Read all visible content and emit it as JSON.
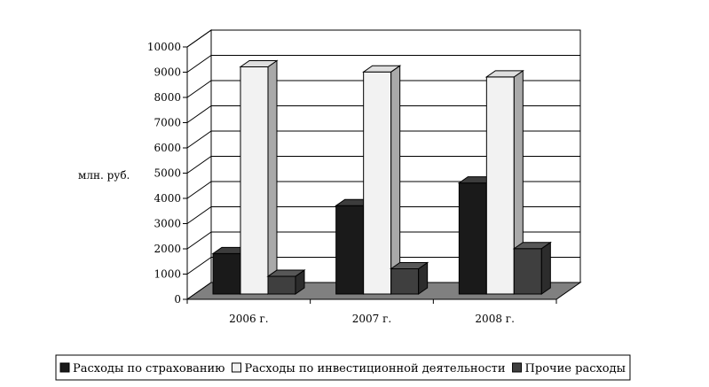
{
  "chart_data": {
    "type": "bar",
    "categories": [
      "2006 г.",
      "2007 г.",
      "2008 г."
    ],
    "series": [
      {
        "name": "Расходы по страхованию",
        "values": [
          1600,
          3500,
          4400
        ],
        "color": "#1a1a1a"
      },
      {
        "name": "Расходы по инвестиционной деятельности",
        "values": [
          9000,
          8800,
          8600
        ],
        "color": "#f2f2f2"
      },
      {
        "name": "Прочие расходы",
        "values": [
          700,
          1000,
          1800
        ],
        "color": "#3f3f3f"
      }
    ],
    "ylabel": "млн. руб.",
    "ylim": [
      0,
      10000
    ],
    "yticks": [
      0,
      1000,
      2000,
      3000,
      4000,
      5000,
      6000,
      7000,
      8000,
      9000,
      10000
    ],
    "grid": true,
    "style": "3d",
    "floor_color": "#808080",
    "legend_position": "bottom"
  }
}
